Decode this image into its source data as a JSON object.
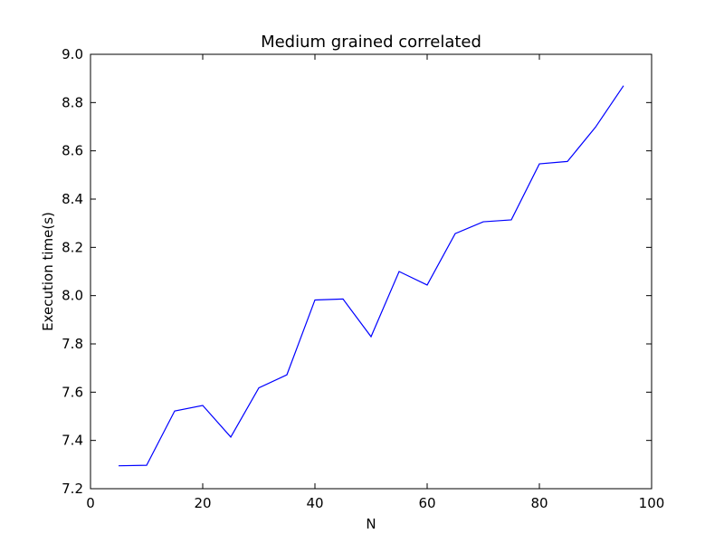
{
  "chart_data": {
    "type": "line",
    "title": "Medium grained correlated",
    "xlabel": "N",
    "ylabel": "Execution time(s)",
    "xlim": [
      0,
      100
    ],
    "ylim": [
      7.2,
      9.0
    ],
    "xticks": [
      "0",
      "20",
      "40",
      "60",
      "80",
      "100"
    ],
    "yticks": [
      "7.2",
      "7.4",
      "7.6",
      "7.8",
      "8.0",
      "8.2",
      "8.4",
      "8.6",
      "8.8",
      "9.0"
    ],
    "grid": false,
    "series": [
      {
        "color": "#0000ff",
        "x": [
          5,
          10,
          15,
          20,
          25,
          30,
          35,
          40,
          45,
          50,
          55,
          60,
          65,
          70,
          75,
          80,
          85,
          90,
          95
        ],
        "y": [
          7.295,
          7.297,
          7.522,
          7.545,
          7.414,
          7.618,
          7.672,
          7.982,
          7.986,
          7.83,
          8.1,
          8.044,
          8.257,
          8.306,
          8.314,
          8.546,
          8.556,
          8.698,
          8.87
        ]
      }
    ]
  }
}
